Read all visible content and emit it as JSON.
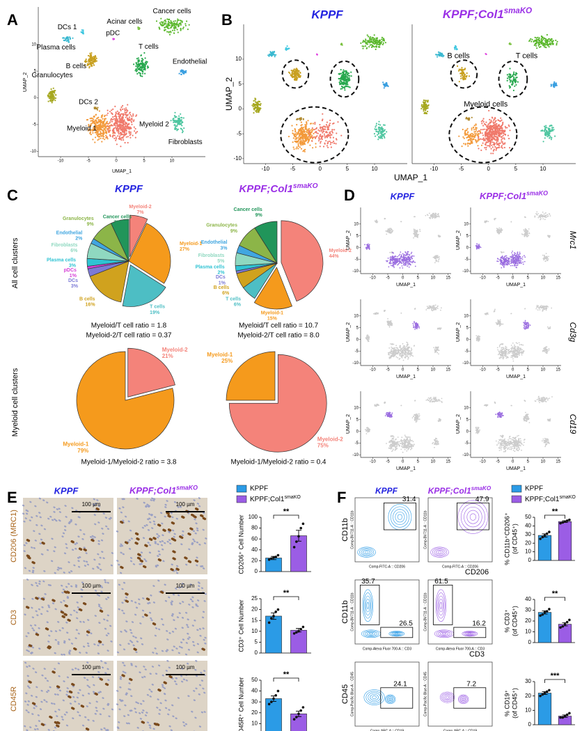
{
  "labels": {
    "kppf": "KPPF",
    "ko": [
      "KPPF;Col1",
      "smaKO"
    ],
    "panels": [
      "A",
      "B",
      "C",
      "D",
      "E",
      "F"
    ]
  },
  "umap": {
    "xlabel": "UMAP_1",
    "ylabel": "UMAP_2",
    "xlim": [
      -14,
      16
    ],
    "ylim": [
      -11,
      17
    ],
    "xticks": [
      -10,
      -5,
      0,
      5,
      10
    ],
    "yticks": [
      -10,
      -5,
      0,
      5,
      10
    ],
    "d_xticks": [
      -10,
      -5,
      0,
      5,
      10,
      15
    ]
  },
  "panel_a": {
    "clusters": [
      "Cancer cells",
      "Acinar cells",
      "DCs 1",
      "pDC",
      "Plasma cells",
      "B cells",
      "T cells",
      "Endothelial",
      "Granulocytes",
      "DCs 2",
      "Myeloid 1",
      "Myeloid 2",
      "Fibroblasts"
    ]
  },
  "panel_b": {
    "outlined": [
      "B cells",
      "T cells",
      "Myeloid cells"
    ]
  },
  "panel_c": {
    "row_labels": [
      "All cell clusters",
      "Myeloid cell clusters"
    ],
    "ratios": [
      [
        "Myeloid/T cell ratio = 1.8",
        "Myeloid-2/T cell ratio = 0.37"
      ],
      [
        "Myeloid/T cell ratio = 10.7",
        "Myeloid-2/T cell ratio = 8.0"
      ],
      [
        "Myeloid-1/Myeloid-2 ratio = 3.8"
      ],
      [
        "Myeloid-1/Myeloid-2 ratio = 0.4"
      ]
    ]
  },
  "panel_d": {
    "genes": [
      "Mrc1",
      "Cd3g",
      "Cd19"
    ]
  },
  "panel_e": {
    "row_labels": [
      "CD206 (MRC1)",
      "CD3",
      "CD45R"
    ],
    "scale_bar": "100 µm"
  },
  "panel_f": {
    "rows": [
      {
        "y_label": "CD11b",
        "x_label": "CD206",
        "y_channel": "Comp-BV711-A :: CD11b",
        "x_channel": "Comp-FITC-A :: CD206",
        "gates": [
          [
            31.4
          ],
          [
            47.9
          ]
        ]
      },
      {
        "y_label": "CD11b",
        "x_label": "CD3",
        "y_channel": "Comp-BV711-A :: CD11b",
        "x_channel": "Comp-Alexa Fluor 700-A :: CD3",
        "gates": [
          [
            35.7,
            26.5
          ],
          [
            61.5,
            16.2
          ]
        ]
      },
      {
        "y_label": "CD45",
        "x_label": "CD19",
        "y_channel": "Comp-Pacific Blue-A :: CD45",
        "x_channel": "Comp-APC-A :: CD19",
        "gates": [
          [
            24.1
          ],
          [
            7.2
          ]
        ]
      }
    ]
  },
  "chart_data": [
    {
      "type": "pie",
      "categories": [
        "Myeloid-2",
        "Myeloid-1",
        "T cells",
        "B cells",
        "DCs",
        "pDCs",
        "Plasma cells",
        "Fibroblasts",
        "Endothelial",
        "Granulocytes",
        "Cancer cells"
      ],
      "values": [
        7,
        27,
        19,
        16,
        3,
        1,
        3,
        6,
        2,
        9,
        7
      ],
      "value_labels": [
        "7%",
        "27%",
        "19%",
        "16%",
        "3%",
        "1%",
        "3%",
        "6%",
        "2%",
        "9%",
        "7%"
      ],
      "colors": [
        "#f4837a",
        "#f59a1c",
        "#4dbec4",
        "#d0a21e",
        "#7c7ad6",
        "#d63fd6",
        "#2fc3d3",
        "#8fd8c0",
        "#41a6e0",
        "#8cb548",
        "#21955a"
      ]
    },
    {
      "type": "pie",
      "categories": [
        "Myeloid-2",
        "Myeloid-1",
        "T cells",
        "B cells",
        "DCs",
        "Plasma cells",
        "Fibroblasts",
        "Endothelial",
        "Granulocytes",
        "Cancer cells"
      ],
      "values": [
        44,
        15,
        6,
        6,
        1,
        2,
        5,
        3,
        9,
        9
      ],
      "value_labels": [
        "44%",
        "15%",
        "6%",
        "6%",
        "1%",
        "2%",
        "5%",
        "3%",
        "9%",
        "9%"
      ],
      "colors": [
        "#f4837a",
        "#f59a1c",
        "#4dbec4",
        "#d0a21e",
        "#7c7ad6",
        "#2fc3d3",
        "#8fd8c0",
        "#41a6e0",
        "#8cb548",
        "#21955a"
      ]
    },
    {
      "type": "pie",
      "categories": [
        "Myeloid-2",
        "Myeloid-1"
      ],
      "values": [
        21,
        79
      ],
      "value_labels": [
        "21%",
        "79%"
      ],
      "colors": [
        "#f4837a",
        "#f59a1c"
      ]
    },
    {
      "type": "pie",
      "categories": [
        "Myeloid-2",
        "Myeloid-1"
      ],
      "values": [
        75,
        25
      ],
      "value_labels": [
        "75%",
        "25%"
      ],
      "colors": [
        "#f4837a",
        "#f59a1c"
      ]
    },
    {
      "type": "bar",
      "ylabel": [
        "CD206⁺ Cell Number"
      ],
      "values": [
        25,
        66
      ],
      "errors": [
        3,
        10
      ],
      "points": [
        [
          22,
          24,
          26,
          27,
          30
        ],
        [
          45,
          55,
          65,
          80,
          88
        ]
      ],
      "colors": [
        "#2b9be6",
        "#9b5de5"
      ],
      "ylim": [
        0,
        100
      ],
      "yticks": [
        0,
        20,
        40,
        60,
        80,
        100
      ],
      "annotation": "**"
    },
    {
      "type": "bar",
      "ylabel": [
        "CD3⁺ Cell Number"
      ],
      "values": [
        17,
        10.5
      ],
      "errors": [
        1.5,
        0.8
      ],
      "points": [
        [
          14,
          16,
          17,
          19,
          20
        ],
        [
          9,
          9.5,
          10,
          11,
          12
        ]
      ],
      "colors": [
        "#2b9be6",
        "#9b5de5"
      ],
      "ylim": [
        0,
        25
      ],
      "yticks": [
        0,
        5,
        10,
        15,
        20,
        25
      ],
      "annotation": "**"
    },
    {
      "type": "bar",
      "ylabel": [
        "CD45R⁺ Cell Number"
      ],
      "values": [
        33,
        19
      ],
      "errors": [
        2.5,
        2.5
      ],
      "points": [
        [
          28,
          30,
          33,
          36,
          40
        ],
        [
          14,
          16,
          19,
          22,
          25
        ]
      ],
      "colors": [
        "#2b9be6",
        "#9b5de5"
      ],
      "ylim": [
        0,
        50
      ],
      "yticks": [
        0,
        10,
        20,
        30,
        40,
        50
      ],
      "annotation": "**"
    },
    {
      "type": "bar",
      "ylabel": [
        "% CD11b⁺CD206⁺",
        "(of CD45⁺)"
      ],
      "values": [
        29,
        45
      ],
      "errors": [
        1.8,
        1
      ],
      "points": [
        [
          25,
          27,
          29,
          31,
          33
        ],
        [
          43,
          44,
          45,
          46,
          47
        ]
      ],
      "colors": [
        "#2b9be6",
        "#9b5de5"
      ],
      "ylim": [
        0,
        50
      ],
      "yticks": [
        0,
        10,
        20,
        30,
        40,
        50
      ],
      "annotation": "**"
    },
    {
      "type": "bar",
      "ylabel": [
        "% CD3⁺",
        "(of CD45⁺)"
      ],
      "values": [
        28,
        17
      ],
      "errors": [
        1.5,
        1.5
      ],
      "points": [
        [
          25,
          26,
          28,
          29,
          31
        ],
        [
          14,
          15,
          17,
          19,
          21
        ]
      ],
      "colors": [
        "#2b9be6",
        "#9b5de5"
      ],
      "ylim": [
        0,
        40
      ],
      "yticks": [
        0,
        10,
        20,
        30,
        40
      ],
      "annotation": "**"
    },
    {
      "type": "bar",
      "ylabel": [
        "% CD19⁺",
        "(of CD45⁺)"
      ],
      "values": [
        22,
        6
      ],
      "errors": [
        1,
        0.8
      ],
      "points": [
        [
          20,
          21,
          22,
          23,
          24
        ],
        [
          5,
          5,
          6,
          7,
          8
        ]
      ],
      "colors": [
        "#2b9be6",
        "#9b5de5"
      ],
      "ylim": [
        0,
        30
      ],
      "yticks": [
        0,
        10,
        20,
        30
      ],
      "annotation": "***"
    }
  ]
}
